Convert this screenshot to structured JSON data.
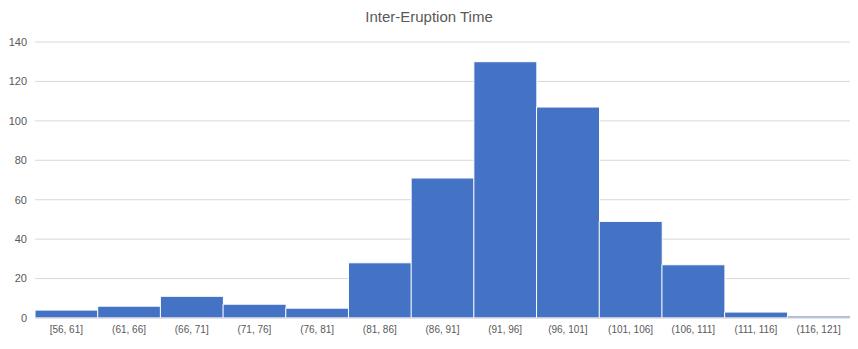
{
  "chart_data": {
    "type": "bar",
    "title": "Inter-Eruption Time",
    "categories": [
      "[56, 61]",
      "(61, 66]",
      "(66, 71]",
      "(71, 76]",
      "(76, 81]",
      "(81, 86]",
      "(86, 91]",
      "(91, 96]",
      "(96, 101]",
      "(101, 106]",
      "(106, 111]",
      "(111, 116]",
      "(116, 121]"
    ],
    "values": [
      4,
      6,
      11,
      7,
      5,
      28,
      71,
      130,
      107,
      49,
      27,
      3,
      1
    ],
    "color": "#4472c4",
    "ylim": [
      0,
      140
    ],
    "yticks": [
      0,
      20,
      40,
      60,
      80,
      100,
      120,
      140
    ],
    "grid": true
  }
}
